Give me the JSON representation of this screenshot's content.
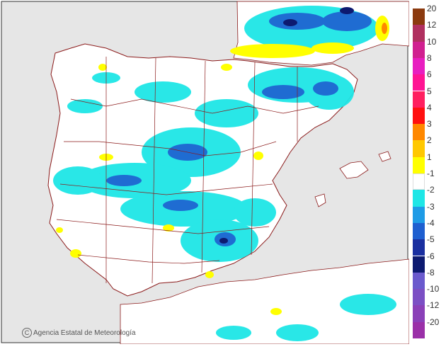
{
  "legend": {
    "levels": [
      {
        "label": "20",
        "color": "#8b3a0f"
      },
      {
        "label": "12",
        "color": "#b03060"
      },
      {
        "label": "10",
        "color": "#d02090"
      },
      {
        "label": "8",
        "color": "#e81ec0"
      },
      {
        "label": "6",
        "color": "#ff1493"
      },
      {
        "label": "5",
        "color": "#ff2060"
      },
      {
        "label": "4",
        "color": "#ff1010"
      },
      {
        "label": "3",
        "color": "#ff8800"
      },
      {
        "label": "2",
        "color": "#ffc800"
      },
      {
        "label": "1",
        "color": "#ffff00"
      },
      {
        "label": "-1",
        "color": "#ffffff"
      },
      {
        "label": "-2",
        "color": "#1ee6e6"
      },
      {
        "label": "-3",
        "color": "#1e9be6"
      },
      {
        "label": "-4",
        "color": "#1e5fd0"
      },
      {
        "label": "-5",
        "color": "#1a2fa0"
      },
      {
        "label": "-6",
        "color": "#0d1a70"
      },
      {
        "label": "-8",
        "color": "#6a5acd"
      },
      {
        "label": "-10",
        "color": "#7b4fc4"
      },
      {
        "label": "-12",
        "color": "#8a40b8"
      },
      {
        "label": "-20",
        "color": "#9a30a8"
      }
    ]
  },
  "credit": {
    "symbol": "C",
    "text": "Agencia Estatal de Meteorología"
  },
  "colors": {
    "land": "#ffffff",
    "sea": "#e6e6e6",
    "border": "#8b1a1a",
    "frame": "#333333"
  }
}
